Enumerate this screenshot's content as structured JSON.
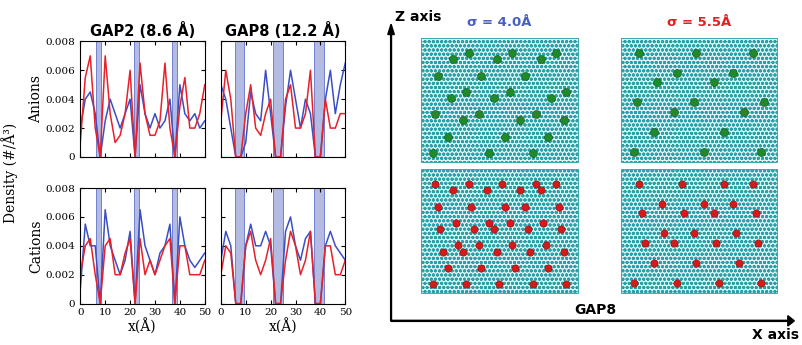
{
  "figure": {
    "ylabel": "Density (#/Å³)"
  },
  "chart_data": [
    {
      "type": "line",
      "title": "GAP2 (8.6 Å)",
      "ylabel": "Anions",
      "tick_labels": "y",
      "xlim": [
        0,
        50
      ],
      "xticks": [
        0,
        10,
        20,
        30,
        40,
        50
      ],
      "ylim": [
        0,
        0.008
      ],
      "yticks": [
        0,
        0.002,
        0.004,
        0.006,
        0.008
      ],
      "shaded_regions": [
        [
          6.5,
          8.5
        ],
        [
          21.5,
          23.5
        ],
        [
          37,
          39
        ]
      ],
      "x": [
        0,
        2,
        4,
        6,
        8,
        10,
        12,
        14,
        16,
        18,
        20,
        22,
        24,
        26,
        28,
        30,
        32,
        34,
        36,
        38,
        40,
        42,
        44,
        46,
        48,
        50
      ],
      "series": [
        {
          "color": "#3b4fc4",
          "values": [
            0.002,
            0.004,
            0.0045,
            0.003,
            0,
            0.0025,
            0.004,
            0.003,
            0.002,
            0.003,
            0.004,
            0,
            0.005,
            0.003,
            0.002,
            0.003,
            0.002,
            0.0025,
            0.004,
            0,
            0.005,
            0.003,
            0.0025,
            0.003,
            0.002,
            0.0025
          ]
        },
        {
          "color": "#e8202a",
          "values": [
            0.001,
            0.0055,
            0.007,
            0.002,
            0,
            0.007,
            0.003,
            0.001,
            0.0015,
            0.003,
            0.006,
            0,
            0.0065,
            0.003,
            0.0015,
            0.0015,
            0.0025,
            0.0065,
            0.002,
            0,
            0.0035,
            0.0055,
            0.002,
            0.002,
            0.003,
            0.005
          ]
        }
      ]
    },
    {
      "type": "line",
      "title": "GAP8 (12.2 Å)",
      "tick_labels": false,
      "xlim": [
        0,
        50
      ],
      "xticks": [
        0,
        10,
        20,
        30,
        40,
        50
      ],
      "ylim": [
        0,
        0.008
      ],
      "yticks": [
        0,
        0.002,
        0.004,
        0.006,
        0.008
      ],
      "shaded_regions": [
        [
          5.5,
          9.5
        ],
        [
          21,
          25
        ],
        [
          37.5,
          41.5
        ]
      ],
      "x": [
        0,
        2,
        4,
        6,
        8,
        10,
        12,
        14,
        16,
        18,
        20,
        22,
        24,
        26,
        28,
        30,
        32,
        34,
        36,
        38,
        40,
        42,
        44,
        46,
        48,
        50
      ],
      "series": [
        {
          "color": "#3b4fc4",
          "values": [
            0.005,
            0.004,
            0.002,
            0,
            0,
            0.001,
            0.0045,
            0.003,
            0.0025,
            0.006,
            0.003,
            0,
            0,
            0.0035,
            0.006,
            0.004,
            0.002,
            0.004,
            0.003,
            0,
            0,
            0.004,
            0.006,
            0.003,
            0.005,
            0.0065
          ]
        },
        {
          "color": "#e8202a",
          "values": [
            0.0025,
            0.006,
            0.004,
            0,
            0,
            0.003,
            0.005,
            0.002,
            0.0015,
            0.003,
            0.004,
            0,
            0,
            0.004,
            0.005,
            0.002,
            0.002,
            0.003,
            0.006,
            0,
            0,
            0.004,
            0.002,
            0.002,
            0.003,
            0.003
          ]
        }
      ]
    },
    {
      "type": "line",
      "ylabel": "Cations",
      "xlabel": "x(Å)",
      "tick_labels": true,
      "xlim": [
        0,
        50
      ],
      "xticks": [
        0,
        10,
        20,
        30,
        40,
        50
      ],
      "ylim": [
        0,
        0.008
      ],
      "yticks": [
        0,
        0.002,
        0.004,
        0.006,
        0.008
      ],
      "shaded_regions": [
        [
          6.5,
          8.5
        ],
        [
          21.5,
          23.5
        ],
        [
          37,
          39
        ]
      ],
      "x": [
        0,
        2,
        4,
        6,
        8,
        10,
        12,
        14,
        16,
        18,
        20,
        22,
        24,
        26,
        28,
        30,
        32,
        34,
        36,
        38,
        40,
        42,
        44,
        46,
        48,
        50
      ],
      "series": [
        {
          "color": "#3b4fc4",
          "values": [
            0.001,
            0.0055,
            0.004,
            0.004,
            0,
            0.0065,
            0.004,
            0.003,
            0.002,
            0.003,
            0.005,
            0,
            0.0065,
            0.004,
            0.003,
            0.002,
            0.0035,
            0.004,
            0.0055,
            0,
            0.006,
            0.004,
            0.003,
            0.0025,
            0.003,
            0.0035
          ]
        },
        {
          "color": "#e8202a",
          "values": [
            0.002,
            0.004,
            0.0045,
            0.002,
            0,
            0.004,
            0.0045,
            0.002,
            0.002,
            0.0035,
            0.0045,
            0,
            0.0045,
            0.002,
            0.003,
            0.002,
            0.003,
            0.004,
            0.0045,
            0,
            0.004,
            0.004,
            0.002,
            0.002,
            0.002,
            0.003
          ]
        }
      ]
    },
    {
      "type": "line",
      "xlabel": "x(Å)",
      "tick_labels": "x",
      "xlim": [
        0,
        50
      ],
      "xticks": [
        0,
        10,
        20,
        30,
        40,
        50
      ],
      "ylim": [
        0,
        0.008
      ],
      "yticks": [
        0,
        0.002,
        0.004,
        0.006,
        0.008
      ],
      "shaded_regions": [
        [
          5.5,
          9.5
        ],
        [
          21,
          25
        ],
        [
          37.5,
          41.5
        ]
      ],
      "x": [
        0,
        2,
        4,
        6,
        8,
        10,
        12,
        14,
        16,
        18,
        20,
        22,
        24,
        26,
        28,
        30,
        32,
        34,
        36,
        38,
        40,
        42,
        44,
        46,
        48,
        50
      ],
      "series": [
        {
          "color": "#3b4fc4",
          "values": [
            0.003,
            0.005,
            0.004,
            0,
            0,
            0.004,
            0.0055,
            0.004,
            0.004,
            0.005,
            0.004,
            0,
            0,
            0.005,
            0.006,
            0.004,
            0.003,
            0.0045,
            0.005,
            0,
            0,
            0.004,
            0.005,
            0.004,
            0.0035,
            0.003
          ]
        },
        {
          "color": "#e8202a",
          "values": [
            0.002,
            0.004,
            0.0035,
            0,
            0,
            0.004,
            0.005,
            0.003,
            0.002,
            0.003,
            0.0045,
            0,
            0,
            0.003,
            0.005,
            0.004,
            0.002,
            0.003,
            0.005,
            0,
            0,
            0.004,
            0.004,
            0.002,
            0.002,
            0.003
          ]
        }
      ]
    }
  ],
  "diagram": {
    "z_axis_label": "Z axis",
    "x_axis_label": "X axis",
    "label": "GAP8",
    "panels": [
      {
        "label": "σ = 4.0Å",
        "color": "#4a5fc1"
      },
      {
        "label": "σ = 5.5Å",
        "color": "#e02020"
      }
    ]
  }
}
